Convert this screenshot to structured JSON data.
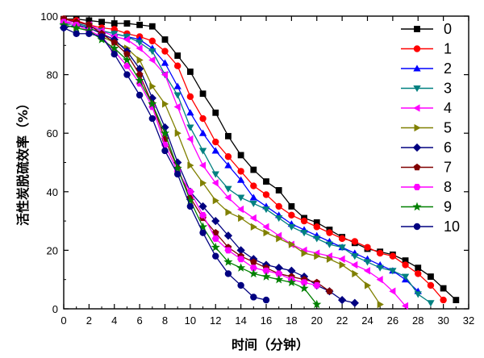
{
  "chart_data": {
    "type": "line",
    "xlabel": "时间（分钟）",
    "ylabel": "活性炭脱硫效率（%）",
    "xlim": [
      0,
      32
    ],
    "ylim": [
      0,
      100
    ],
    "xticks": [
      "0",
      "2",
      "4",
      "6",
      "8",
      "10",
      "12",
      "14",
      "16",
      "18",
      "20",
      "22",
      "24",
      "26",
      "28",
      "30",
      "32"
    ],
    "yticks": [
      "0",
      "20",
      "40",
      "60",
      "80",
      "100"
    ],
    "grid": false,
    "legend_position": "top-right",
    "series": [
      {
        "name": "0",
        "color": "#000000",
        "marker": "square",
        "x": [
          0,
          1,
          2,
          3,
          4,
          5,
          6,
          7,
          8,
          9,
          10,
          11,
          12,
          13,
          14,
          15,
          16,
          17,
          18,
          19,
          20,
          21,
          22,
          23,
          24,
          25,
          26,
          27,
          28,
          29,
          30,
          31
        ],
        "values": [
          99,
          99,
          98.5,
          98,
          97.5,
          97.5,
          97,
          96.5,
          92,
          86.5,
          81,
          73.5,
          67,
          59,
          52.5,
          47.5,
          43.5,
          40.5,
          35,
          31,
          29.5,
          27,
          24.5,
          22.5,
          20.5,
          19.5,
          18.5,
          16.5,
          14,
          11,
          7,
          3
        ]
      },
      {
        "name": "1",
        "color": "#ff0000",
        "marker": "circle",
        "x": [
          0,
          1,
          2,
          3,
          4,
          5,
          6,
          7,
          8,
          9,
          10,
          11,
          12,
          13,
          14,
          15,
          16,
          17,
          18,
          19,
          20,
          21,
          22,
          23,
          24,
          25,
          26,
          27,
          28,
          29,
          30
        ],
        "values": [
          99,
          98.5,
          97,
          96,
          95.5,
          94,
          93,
          91.5,
          88,
          83,
          72.5,
          65,
          57,
          52,
          47,
          42,
          39,
          35,
          32,
          30,
          28,
          26,
          24,
          23,
          21,
          19,
          18,
          15,
          12,
          8,
          3
        ]
      },
      {
        "name": "2",
        "color": "#0000ff",
        "marker": "triangle-up",
        "x": [
          0,
          1,
          2,
          3,
          4,
          5,
          6,
          7,
          8,
          9,
          10,
          11,
          12,
          13,
          14,
          15,
          16,
          17,
          18,
          19,
          20,
          21,
          22,
          23,
          24,
          25,
          26,
          27,
          28
        ],
        "values": [
          98,
          98,
          97,
          95,
          94,
          93,
          92,
          89,
          84,
          76,
          67,
          60,
          54,
          49,
          44,
          38,
          35,
          32,
          29,
          27,
          25,
          23,
          21,
          19,
          17,
          15,
          13,
          10,
          6
        ]
      },
      {
        "name": "3",
        "color": "#008080",
        "marker": "triangle-down",
        "x": [
          0,
          1,
          2,
          3,
          4,
          5,
          6,
          7,
          8,
          9,
          10,
          11,
          12,
          13,
          14,
          15,
          16,
          17,
          18,
          19,
          20,
          21,
          22,
          23,
          24,
          25,
          26,
          27,
          28,
          29
        ],
        "values": [
          97,
          97.5,
          96.5,
          95,
          94,
          93,
          91,
          88,
          80,
          73,
          62,
          54,
          46,
          41,
          38,
          36,
          34,
          31,
          28,
          26,
          24,
          22,
          21,
          18,
          16,
          14,
          13,
          11,
          5,
          2
        ]
      },
      {
        "name": "4",
        "color": "#ff00ff",
        "marker": "triangle-left",
        "x": [
          0,
          1,
          2,
          3,
          4,
          5,
          6,
          7,
          8,
          9,
          10,
          11,
          12,
          13,
          14,
          15,
          16,
          17,
          18,
          19,
          20,
          21,
          22,
          23,
          24,
          25,
          26,
          27
        ],
        "values": [
          98,
          98,
          97,
          95,
          93,
          92,
          89,
          85,
          80,
          69,
          58,
          49,
          43,
          38,
          34,
          31,
          28,
          25,
          22,
          20,
          19,
          18,
          17,
          15,
          13,
          10,
          6,
          1
        ]
      },
      {
        "name": "5",
        "color": "#808000",
        "marker": "triangle-right",
        "x": [
          0,
          1,
          2,
          3,
          4,
          5,
          6,
          7,
          8,
          9,
          10,
          11,
          12,
          13,
          14,
          15,
          16,
          17,
          18,
          19,
          20,
          21,
          22,
          23,
          24,
          25
        ],
        "values": [
          97,
          96,
          95,
          93,
          91,
          89,
          85,
          76,
          70,
          60,
          49,
          43,
          37,
          33,
          31,
          28,
          26,
          24,
          22,
          19,
          18,
          17,
          15,
          12,
          8,
          1.5
        ]
      },
      {
        "name": "6",
        "color": "#000080",
        "marker": "diamond",
        "x": [
          0,
          1,
          2,
          3,
          4,
          5,
          6,
          7,
          8,
          9,
          10,
          11,
          12,
          13,
          14,
          15,
          16,
          17,
          18,
          19,
          20,
          21,
          22,
          23
        ],
        "values": [
          96,
          97,
          96,
          94,
          92,
          88,
          82,
          72,
          62,
          50,
          40,
          35,
          30,
          25,
          20,
          17,
          15,
          14,
          13,
          11,
          8,
          6,
          3,
          2
        ]
      },
      {
        "name": "7",
        "color": "#800000",
        "marker": "pentagon",
        "x": [
          0,
          1,
          2,
          3,
          4,
          5,
          6,
          7,
          8,
          9,
          10,
          11,
          12,
          13,
          14,
          15,
          16,
          17,
          18,
          19,
          20,
          21
        ],
        "values": [
          99,
          98,
          97,
          94,
          91,
          87,
          80,
          70,
          58,
          48,
          38,
          31,
          26,
          21,
          18,
          16,
          14,
          12,
          11,
          10,
          9,
          6
        ]
      },
      {
        "name": "8",
        "color": "#ff00ff",
        "marker": "hexagon",
        "x": [
          0,
          1,
          2,
          3,
          4,
          5,
          6,
          7,
          8,
          9,
          10,
          11,
          12,
          13,
          14,
          15,
          16,
          17,
          18,
          19,
          20
        ],
        "values": [
          98,
          97,
          95,
          93,
          88,
          83,
          77,
          69,
          56,
          47,
          40,
          32,
          24,
          20,
          17,
          14,
          13,
          12,
          10,
          9,
          8
        ]
      },
      {
        "name": "9",
        "color": "#008000",
        "marker": "star",
        "x": [
          0,
          1,
          2,
          3,
          4,
          5,
          6,
          7,
          8,
          9,
          10,
          11,
          12,
          13,
          14,
          15,
          16,
          17,
          18,
          19,
          20
        ],
        "values": [
          97,
          96,
          95,
          92,
          89,
          85,
          78,
          70,
          60,
          48,
          37,
          28,
          21,
          16,
          14,
          12,
          11,
          10,
          9,
          7,
          1.5
        ]
      },
      {
        "name": "10",
        "color": "#000080",
        "marker": "circle",
        "x": [
          0,
          1,
          2,
          3,
          4,
          5,
          6,
          7,
          8,
          9,
          10,
          11,
          12,
          13,
          14,
          15,
          16
        ],
        "values": [
          96,
          94,
          94,
          93,
          87,
          80,
          73,
          65,
          54,
          46,
          35,
          26,
          18,
          12,
          8,
          4,
          3
        ]
      }
    ]
  }
}
